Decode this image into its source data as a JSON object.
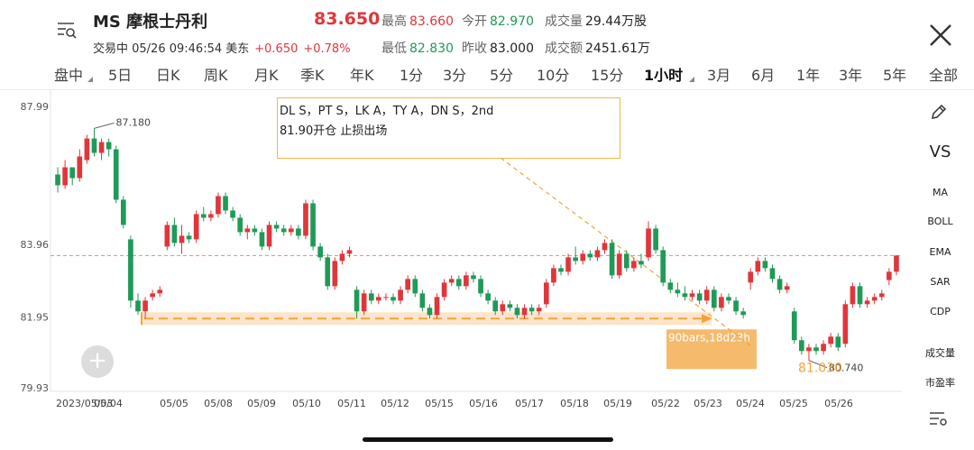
{
  "header": {
    "title": "MS 摩根士丹利",
    "price": "83.650",
    "status": "交易中 05/26 09:46:54 美东",
    "change": "+0.650",
    "change_pct": "+0.78%",
    "stats": {
      "high_label": "最高",
      "high": "83.660",
      "open_label": "今开",
      "open": "82.970",
      "volume_label": "成交量",
      "volume": "29.44万股",
      "low_label": "最低",
      "low": "82.830",
      "prev_close_label": "昨收",
      "prev_close": "83.000",
      "turnover_label": "成交额",
      "turnover": "2451.61万"
    }
  },
  "tabs": [
    {
      "label": "盘中",
      "active": false
    },
    {
      "label": "5日",
      "active": false
    },
    {
      "label": "日K",
      "active": false
    },
    {
      "label": "周K",
      "active": false
    },
    {
      "label": "月K",
      "active": false
    },
    {
      "label": "季K",
      "active": false
    },
    {
      "label": "年K",
      "active": false
    },
    {
      "label": "1分",
      "active": false
    },
    {
      "label": "3分",
      "active": false
    },
    {
      "label": "5分",
      "active": false
    },
    {
      "label": "10分",
      "active": false
    },
    {
      "label": "15分",
      "active": false
    },
    {
      "label": "1小时",
      "active": true
    },
    {
      "label": "3月",
      "active": false
    },
    {
      "label": "6月",
      "active": false
    },
    {
      "label": "1年",
      "active": false
    },
    {
      "label": "3年",
      "active": false
    },
    {
      "label": "5年",
      "active": false
    },
    {
      "label": "全部",
      "active": false
    }
  ],
  "sidebar": {
    "vs": "VS",
    "indicators": [
      "MA",
      "BOLL",
      "EMA",
      "SAR",
      "CDP"
    ],
    "extras": [
      "成交量",
      "市盈率"
    ]
  },
  "annotation": {
    "line1": "DL S，PT S，LK A，TY A，DN S，2nd",
    "line2": "81.90开仓 止损出场"
  },
  "colors": {
    "up": "#e0363b",
    "down": "#1f9a57",
    "accent": "#f3a33c",
    "price_line": "#f08a6a"
  },
  "chart_data": {
    "type": "candlestick",
    "ylim": [
      79.93,
      87.99
    ],
    "y_ticks": [
      "87.99",
      "83.96",
      "81.95",
      "79.93"
    ],
    "x_labels": [
      "2023/05/03",
      "05/04",
      "05/05",
      "05/08",
      "05/09",
      "05/10",
      "05/11",
      "05/12",
      "05/15",
      "05/16",
      "05/17",
      "05/18",
      "05/19",
      "05/22",
      "05/23",
      "05/24",
      "05/25",
      "05/26"
    ],
    "high_label": "87.180",
    "low_label": "80.740",
    "current_price_line": 83.65,
    "measure_label": "90bars,18d23h",
    "measure_end_value": "81.030",
    "measure_start_value": 81.9,
    "ohlc": [
      {
        "o": 85.9,
        "h": 86.1,
        "l": 85.4,
        "c": 85.6
      },
      {
        "o": 85.6,
        "h": 86.3,
        "l": 85.5,
        "c": 86.1
      },
      {
        "o": 86.1,
        "h": 86.1,
        "l": 85.6,
        "c": 85.8
      },
      {
        "o": 85.8,
        "h": 86.6,
        "l": 85.7,
        "c": 86.4
      },
      {
        "o": 86.3,
        "h": 87.0,
        "l": 86.2,
        "c": 86.9
      },
      {
        "o": 86.9,
        "h": 87.18,
        "l": 86.4,
        "c": 86.5
      },
      {
        "o": 86.5,
        "h": 86.9,
        "l": 86.3,
        "c": 86.8
      },
      {
        "o": 86.8,
        "h": 86.9,
        "l": 86.4,
        "c": 86.6
      },
      {
        "o": 86.6,
        "h": 86.7,
        "l": 85.1,
        "c": 85.2
      },
      {
        "o": 85.2,
        "h": 85.3,
        "l": 84.4,
        "c": 84.5
      },
      {
        "o": 84.1,
        "h": 84.2,
        "l": 82.2,
        "c": 82.4
      },
      {
        "o": 82.4,
        "h": 82.6,
        "l": 82.0,
        "c": 82.1
      },
      {
        "o": 82.1,
        "h": 82.5,
        "l": 81.9,
        "c": 82.4
      },
      {
        "o": 82.5,
        "h": 82.7,
        "l": 82.4,
        "c": 82.6
      },
      {
        "o": 82.6,
        "h": 82.8,
        "l": 82.5,
        "c": 82.7
      },
      {
        "o": 83.9,
        "h": 84.6,
        "l": 83.8,
        "c": 84.5
      },
      {
        "o": 84.5,
        "h": 84.7,
        "l": 83.9,
        "c": 84.0
      },
      {
        "o": 84.0,
        "h": 84.5,
        "l": 83.7,
        "c": 84.2
      },
      {
        "o": 84.2,
        "h": 84.3,
        "l": 84.0,
        "c": 84.1
      },
      {
        "o": 84.1,
        "h": 84.9,
        "l": 84.0,
        "c": 84.8
      },
      {
        "o": 84.8,
        "h": 85.0,
        "l": 84.6,
        "c": 84.7
      },
      {
        "o": 84.7,
        "h": 84.9,
        "l": 84.6,
        "c": 84.8
      },
      {
        "o": 84.8,
        "h": 85.4,
        "l": 84.7,
        "c": 85.3
      },
      {
        "o": 85.3,
        "h": 85.4,
        "l": 84.8,
        "c": 84.9
      },
      {
        "o": 84.9,
        "h": 85.0,
        "l": 84.6,
        "c": 84.7
      },
      {
        "o": 84.7,
        "h": 84.8,
        "l": 84.2,
        "c": 84.3
      },
      {
        "o": 84.3,
        "h": 84.5,
        "l": 84.1,
        "c": 84.4
      },
      {
        "o": 84.4,
        "h": 84.5,
        "l": 84.2,
        "c": 84.3
      },
      {
        "o": 84.3,
        "h": 84.4,
        "l": 83.8,
        "c": 83.9
      },
      {
        "o": 83.9,
        "h": 84.6,
        "l": 83.8,
        "c": 84.5
      },
      {
        "o": 84.5,
        "h": 84.6,
        "l": 84.3,
        "c": 84.4
      },
      {
        "o": 84.4,
        "h": 84.5,
        "l": 84.2,
        "c": 84.3
      },
      {
        "o": 84.3,
        "h": 84.5,
        "l": 84.2,
        "c": 84.4
      },
      {
        "o": 84.4,
        "h": 84.5,
        "l": 84.1,
        "c": 84.2
      },
      {
        "o": 84.2,
        "h": 85.2,
        "l": 84.1,
        "c": 85.1
      },
      {
        "o": 85.1,
        "h": 85.2,
        "l": 83.8,
        "c": 83.9
      },
      {
        "o": 83.9,
        "h": 84.0,
        "l": 83.5,
        "c": 83.6
      },
      {
        "o": 83.6,
        "h": 83.7,
        "l": 82.7,
        "c": 82.8
      },
      {
        "o": 82.8,
        "h": 83.6,
        "l": 82.7,
        "c": 83.5
      },
      {
        "o": 83.5,
        "h": 83.8,
        "l": 83.4,
        "c": 83.7
      },
      {
        "o": 83.7,
        "h": 83.9,
        "l": 83.6,
        "c": 83.8
      },
      {
        "o": 82.7,
        "h": 82.8,
        "l": 81.9,
        "c": 82.1
      },
      {
        "o": 82.1,
        "h": 82.7,
        "l": 82.0,
        "c": 82.6
      },
      {
        "o": 82.6,
        "h": 82.7,
        "l": 82.3,
        "c": 82.4
      },
      {
        "o": 82.4,
        "h": 82.6,
        "l": 82.3,
        "c": 82.5
      },
      {
        "o": 82.5,
        "h": 82.6,
        "l": 82.4,
        "c": 82.5
      },
      {
        "o": 82.5,
        "h": 82.6,
        "l": 82.3,
        "c": 82.4
      },
      {
        "o": 82.4,
        "h": 82.8,
        "l": 82.3,
        "c": 82.7
      },
      {
        "o": 82.7,
        "h": 83.1,
        "l": 82.6,
        "c": 83.0
      },
      {
        "o": 83.0,
        "h": 83.1,
        "l": 82.5,
        "c": 82.6
      },
      {
        "o": 82.6,
        "h": 82.7,
        "l": 82.1,
        "c": 82.2
      },
      {
        "o": 82.2,
        "h": 82.3,
        "l": 81.9,
        "c": 82.0
      },
      {
        "o": 82.0,
        "h": 82.6,
        "l": 81.9,
        "c": 82.5
      },
      {
        "o": 82.5,
        "h": 83.0,
        "l": 82.4,
        "c": 82.9
      },
      {
        "o": 82.9,
        "h": 83.1,
        "l": 82.8,
        "c": 83.0
      },
      {
        "o": 83.0,
        "h": 83.1,
        "l": 82.7,
        "c": 82.8
      },
      {
        "o": 82.8,
        "h": 83.2,
        "l": 82.7,
        "c": 83.1
      },
      {
        "o": 83.1,
        "h": 83.2,
        "l": 82.9,
        "c": 83.0
      },
      {
        "o": 83.0,
        "h": 83.1,
        "l": 82.5,
        "c": 82.6
      },
      {
        "o": 82.6,
        "h": 82.7,
        "l": 82.3,
        "c": 82.4
      },
      {
        "o": 82.4,
        "h": 82.5,
        "l": 82.0,
        "c": 82.1
      },
      {
        "o": 82.1,
        "h": 82.4,
        "l": 82.0,
        "c": 82.3
      },
      {
        "o": 82.3,
        "h": 82.4,
        "l": 82.1,
        "c": 82.2
      },
      {
        "o": 82.2,
        "h": 82.3,
        "l": 81.9,
        "c": 82.0
      },
      {
        "o": 82.0,
        "h": 82.3,
        "l": 81.9,
        "c": 82.2
      },
      {
        "o": 82.2,
        "h": 82.3,
        "l": 82.0,
        "c": 82.1
      },
      {
        "o": 82.1,
        "h": 82.3,
        "l": 82.0,
        "c": 82.2
      },
      {
        "o": 82.3,
        "h": 83.0,
        "l": 82.2,
        "c": 82.9
      },
      {
        "o": 82.9,
        "h": 83.4,
        "l": 82.8,
        "c": 83.3
      },
      {
        "o": 83.3,
        "h": 83.4,
        "l": 83.1,
        "c": 83.2
      },
      {
        "o": 83.2,
        "h": 83.7,
        "l": 83.1,
        "c": 83.6
      },
      {
        "o": 83.6,
        "h": 83.9,
        "l": 83.4,
        "c": 83.5
      },
      {
        "o": 83.5,
        "h": 83.8,
        "l": 83.4,
        "c": 83.7
      },
      {
        "o": 83.7,
        "h": 83.8,
        "l": 83.5,
        "c": 83.6
      },
      {
        "o": 83.6,
        "h": 83.9,
        "l": 83.5,
        "c": 83.8
      },
      {
        "o": 83.8,
        "h": 84.1,
        "l": 83.7,
        "c": 84.0
      },
      {
        "o": 84.0,
        "h": 84.1,
        "l": 83.0,
        "c": 83.1
      },
      {
        "o": 83.1,
        "h": 83.8,
        "l": 83.0,
        "c": 83.7
      },
      {
        "o": 83.7,
        "h": 83.8,
        "l": 83.2,
        "c": 83.3
      },
      {
        "o": 83.3,
        "h": 83.6,
        "l": 83.2,
        "c": 83.5
      },
      {
        "o": 83.5,
        "h": 83.7,
        "l": 83.3,
        "c": 83.4
      },
      {
        "o": 83.6,
        "h": 84.6,
        "l": 83.5,
        "c": 84.4
      },
      {
        "o": 84.4,
        "h": 84.5,
        "l": 83.7,
        "c": 83.8
      },
      {
        "o": 83.8,
        "h": 83.9,
        "l": 82.8,
        "c": 82.9
      },
      {
        "o": 82.9,
        "h": 83.0,
        "l": 82.6,
        "c": 82.7
      },
      {
        "o": 82.7,
        "h": 82.9,
        "l": 82.5,
        "c": 82.6
      },
      {
        "o": 82.6,
        "h": 82.8,
        "l": 82.4,
        "c": 82.5
      },
      {
        "o": 82.5,
        "h": 82.7,
        "l": 82.4,
        "c": 82.6
      },
      {
        "o": 82.6,
        "h": 82.7,
        "l": 82.3,
        "c": 82.4
      },
      {
        "o": 82.4,
        "h": 82.8,
        "l": 82.3,
        "c": 82.7
      },
      {
        "o": 82.7,
        "h": 82.8,
        "l": 82.1,
        "c": 82.2
      },
      {
        "o": 82.2,
        "h": 82.6,
        "l": 82.1,
        "c": 82.5
      },
      {
        "o": 82.5,
        "h": 82.6,
        "l": 82.3,
        "c": 82.4
      },
      {
        "o": 82.4,
        "h": 82.5,
        "l": 82.0,
        "c": 82.1
      },
      {
        "o": 82.1,
        "h": 82.2,
        "l": 81.9,
        "c": 82.0
      },
      {
        "o": 82.9,
        "h": 83.3,
        "l": 82.7,
        "c": 83.2
      },
      {
        "o": 83.2,
        "h": 83.6,
        "l": 83.1,
        "c": 83.5
      },
      {
        "o": 83.5,
        "h": 83.6,
        "l": 83.2,
        "c": 83.3
      },
      {
        "o": 83.3,
        "h": 83.4,
        "l": 82.9,
        "c": 83.0
      },
      {
        "o": 83.0,
        "h": 83.1,
        "l": 82.6,
        "c": 82.7
      },
      {
        "o": 82.7,
        "h": 82.9,
        "l": 82.6,
        "c": 82.8
      },
      {
        "o": 82.1,
        "h": 82.2,
        "l": 81.2,
        "c": 81.3
      },
      {
        "o": 81.3,
        "h": 81.4,
        "l": 80.9,
        "c": 81.0
      },
      {
        "o": 81.0,
        "h": 81.2,
        "l": 80.74,
        "c": 81.1
      },
      {
        "o": 81.1,
        "h": 81.2,
        "l": 80.9,
        "c": 81.0
      },
      {
        "o": 81.0,
        "h": 81.3,
        "l": 80.9,
        "c": 81.2
      },
      {
        "o": 81.2,
        "h": 81.5,
        "l": 81.1,
        "c": 81.4
      },
      {
        "o": 81.4,
        "h": 81.5,
        "l": 81.0,
        "c": 81.1
      },
      {
        "o": 81.2,
        "h": 82.4,
        "l": 81.1,
        "c": 82.3
      },
      {
        "o": 82.3,
        "h": 82.9,
        "l": 82.2,
        "c": 82.8
      },
      {
        "o": 82.8,
        "h": 82.9,
        "l": 82.2,
        "c": 82.3
      },
      {
        "o": 82.3,
        "h": 82.5,
        "l": 82.2,
        "c": 82.4
      },
      {
        "o": 82.4,
        "h": 82.6,
        "l": 82.3,
        "c": 82.5
      },
      {
        "o": 82.5,
        "h": 82.7,
        "l": 82.4,
        "c": 82.6
      },
      {
        "o": 82.97,
        "h": 83.3,
        "l": 82.83,
        "c": 83.2
      },
      {
        "o": 83.2,
        "h": 83.66,
        "l": 83.1,
        "c": 83.65
      }
    ]
  }
}
